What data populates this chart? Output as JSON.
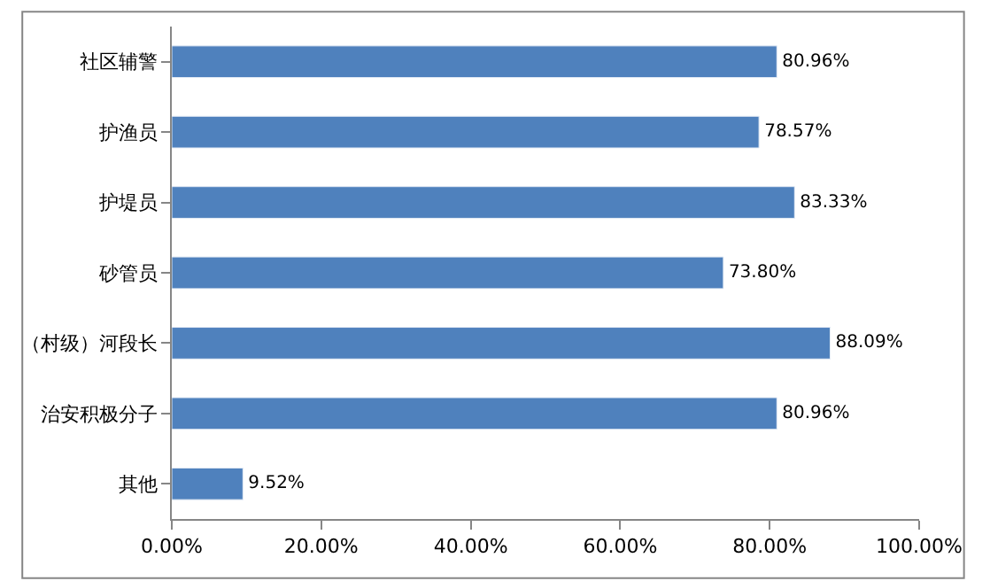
{
  "chart_data": {
    "type": "bar",
    "orientation": "horizontal",
    "categories": [
      "社区辅警",
      "护渔员",
      "护堤员",
      "砂管员",
      "（村级）河段长",
      "治安积极分子",
      "其他"
    ],
    "values": [
      80.96,
      78.57,
      83.33,
      73.8,
      88.09,
      80.96,
      9.52
    ],
    "value_labels": [
      "80.96%",
      "78.57%",
      "83.33%",
      "73.80%",
      "88.09%",
      "80.96%",
      "9.52%"
    ],
    "color": "#4f81bd",
    "xlim": [
      0,
      100
    ],
    "xticks": [
      {
        "value": 0,
        "label": "0.00%"
      },
      {
        "value": 20,
        "label": "20.00%"
      },
      {
        "value": 40,
        "label": "40.00%"
      },
      {
        "value": 60,
        "label": "60.00%"
      },
      {
        "value": 80,
        "label": "80.00%"
      },
      {
        "value": 100,
        "label": "100.00%"
      }
    ],
    "legend": false
  }
}
